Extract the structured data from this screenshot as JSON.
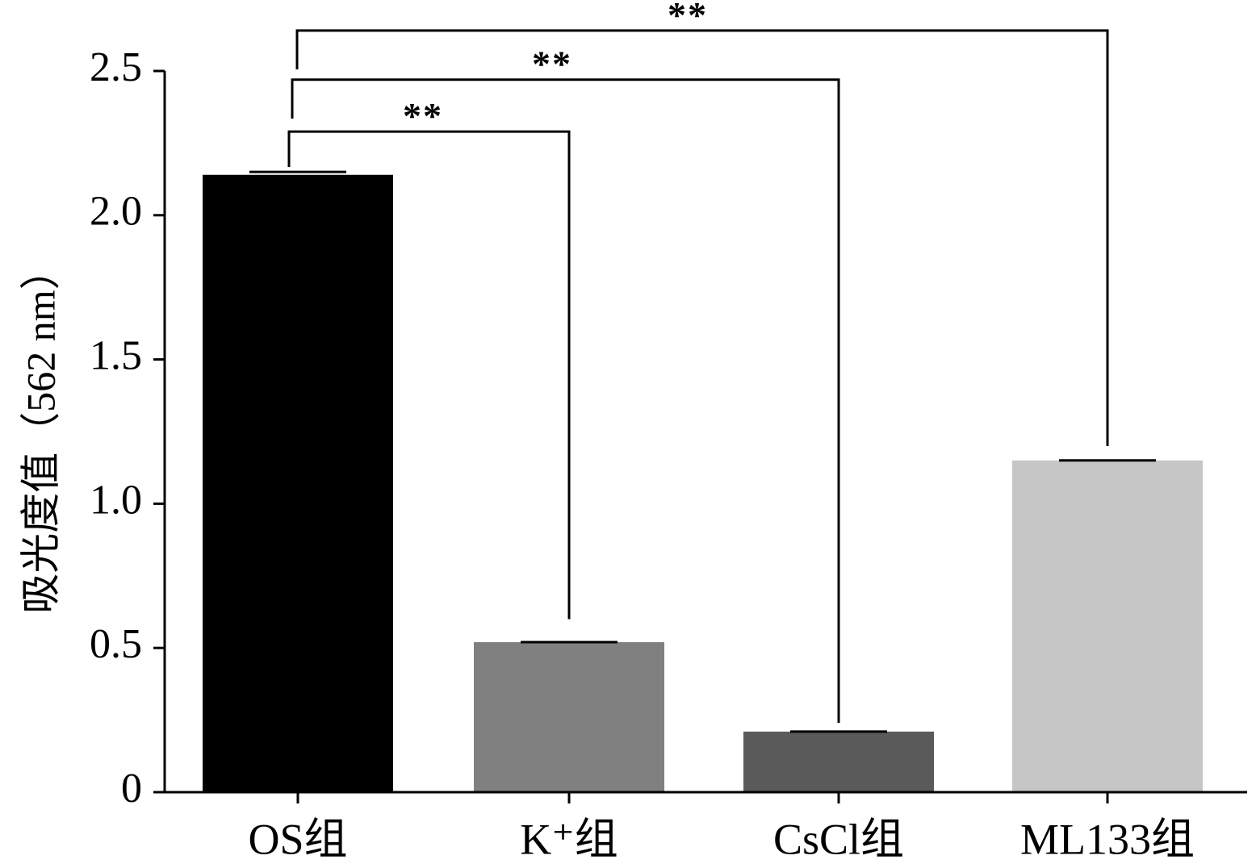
{
  "chart_data": {
    "type": "bar",
    "categories": [
      "OS组",
      "K⁺组",
      "CsCl组",
      "ML133组"
    ],
    "values": [
      2.14,
      0.52,
      0.21,
      1.15
    ],
    "errors": [
      0.01,
      0.0,
      0.0,
      0.0
    ],
    "bar_colors": [
      "#000000",
      "#808080",
      "#5a5a5a",
      "#c6c6c6"
    ],
    "ylabel": "吸光度值（562 nm）",
    "xlabel": "",
    "title": "",
    "ylim": [
      0,
      2.5
    ],
    "yticks": [
      {
        "value": 0,
        "label": "0"
      },
      {
        "value": 0.5,
        "label": "0.5"
      },
      {
        "value": 1.0,
        "label": "1.0"
      },
      {
        "value": 1.5,
        "label": "1.5"
      },
      {
        "value": 2.0,
        "label": "2.0"
      },
      {
        "value": 2.5,
        "label": "2.5"
      }
    ],
    "grid": false,
    "legend": "none",
    "significance": [
      {
        "from": 0,
        "to": 1,
        "label": "**",
        "y_top": 2.29,
        "y_end": 0.6
      },
      {
        "from": 0,
        "to": 2,
        "label": "**",
        "y_top": 2.47,
        "y_end": 0.24
      },
      {
        "from": 0,
        "to": 3,
        "label": "**",
        "y_top": 2.64,
        "y_end": 1.2
      }
    ]
  }
}
